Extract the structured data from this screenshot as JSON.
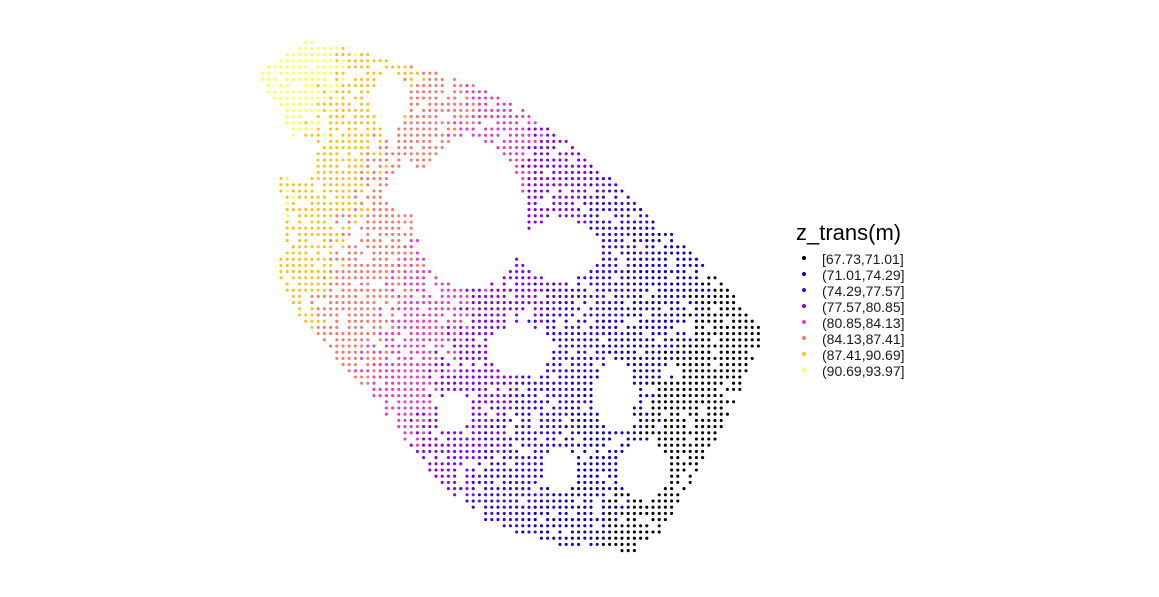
{
  "chart_data": {
    "type": "scatter",
    "title": "",
    "xlabel": "",
    "ylabel": "",
    "grid": false,
    "axes_visible": false,
    "legend": {
      "position": "right",
      "title": "z_trans(m)",
      "entries": [
        {
          "label": "[67.73,71.01]",
          "color": "#000000"
        },
        {
          "label": "(71.01,74.29]",
          "color": "#0d00c0"
        },
        {
          "label": "(74.29,77.57]",
          "color": "#3f00de"
        },
        {
          "label": "(77.57,80.85]",
          "color": "#8a00e6"
        },
        {
          "label": "(80.85,84.13]",
          "color": "#e73dbe"
        },
        {
          "label": "(84.13,87.41]",
          "color": "#f37a6f"
        },
        {
          "label": "(87.41,90.69]",
          "color": "#f6c31c"
        },
        {
          "label": "(90.69,93.97]",
          "color": "#ffff4a"
        }
      ]
    },
    "classes": [
      {
        "name": "[67.73,71.01]",
        "color": "#000000"
      },
      {
        "name": "(71.01,74.29]",
        "color": "#0d00c0"
      },
      {
        "name": "(74.29,77.57]",
        "color": "#3f00de"
      },
      {
        "name": "(77.57,80.85]",
        "color": "#8a00e6"
      },
      {
        "name": "(80.85,84.13]",
        "color": "#e73dbe"
      },
      {
        "name": "(84.13,87.41]",
        "color": "#f37a6f"
      },
      {
        "name": "(87.41,90.69]",
        "color": "#f6c31c"
      },
      {
        "name": "(90.69,93.97]",
        "color": "#ffff4a"
      }
    ]
  }
}
